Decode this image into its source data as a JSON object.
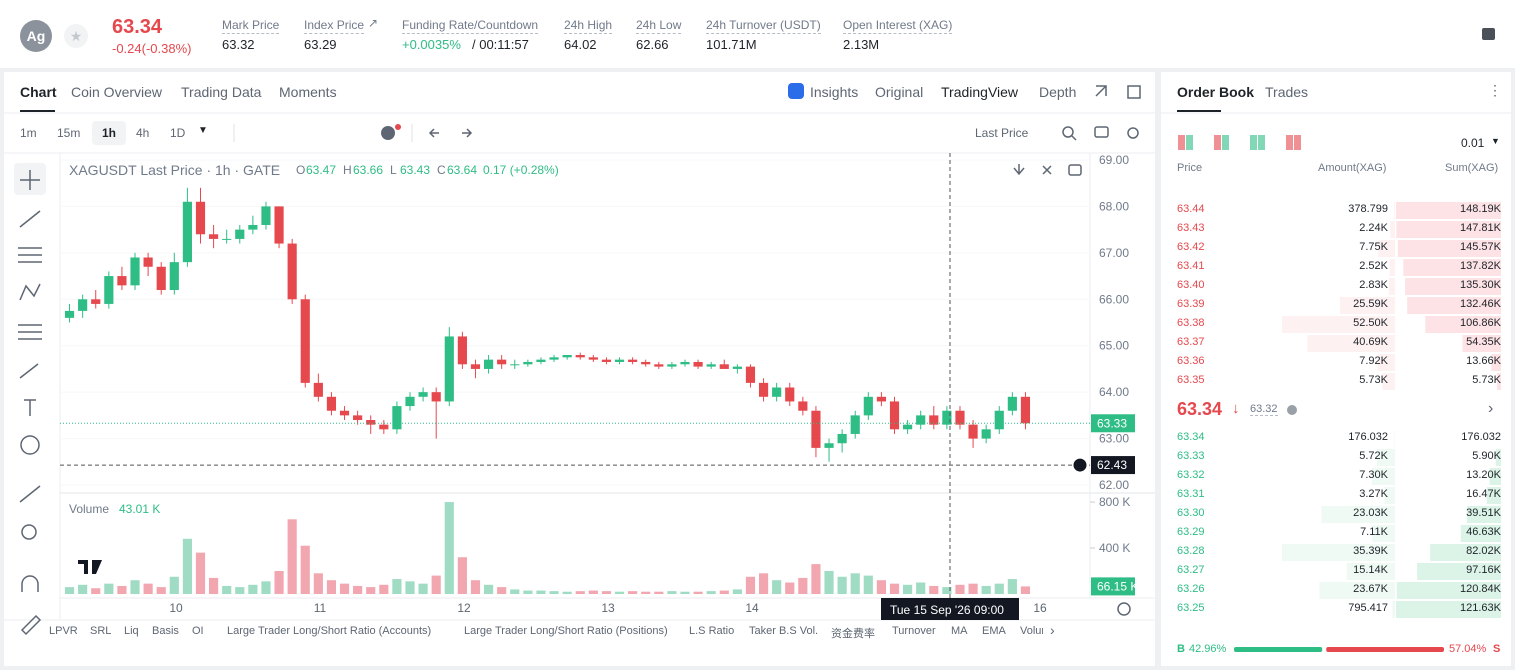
{
  "header": {
    "avatar": "Ag",
    "price": "63.34",
    "change": "-0.24(-0.38%)",
    "stats": [
      {
        "label": "Mark Price",
        "value": "63.32"
      },
      {
        "label": "Index Price",
        "value": "63.29"
      },
      {
        "label": "Funding Rate/Countdown",
        "value": "+0.0035%",
        "extra": "/ 00:11:57"
      },
      {
        "label": "24h High",
        "value": "64.02"
      },
      {
        "label": "24h Low",
        "value": "62.66"
      },
      {
        "label": "24h Turnover (USDT)",
        "value": "101.71M"
      },
      {
        "label": "Open Interest (XAG)",
        "value": "2.13M"
      }
    ]
  },
  "tabs": [
    "Chart",
    "Coin Overview",
    "Trading Data",
    "Moments"
  ],
  "view_tabs": [
    "Insights",
    "Original",
    "TradingView",
    "Depth"
  ],
  "intervals": [
    "1m",
    "15m",
    "1h",
    "4h",
    "1D"
  ],
  "price_type": "Last Price",
  "chart_data": {
    "type": "candlestick",
    "symbol": "XAGUSDT Last Price · 1h · GATE",
    "ohlc": [
      {
        "key": "O",
        "value": "63.47"
      },
      {
        "key": "H",
        "value": "63.66"
      },
      {
        "key": "L",
        "value": "63.43"
      },
      {
        "key": "C",
        "value": "63.64"
      }
    ],
    "change": "0.17 (+0.28%)",
    "ylim": [
      61.85,
      69.15
    ],
    "yticks": [
      {
        "value": 62,
        "label": "62.00"
      },
      {
        "value": 63,
        "label": "63.00"
      },
      {
        "value": 64,
        "label": "64.00"
      },
      {
        "value": 65,
        "label": "65.00"
      },
      {
        "value": 66,
        "label": "66.00"
      },
      {
        "value": 67,
        "label": "67.00"
      },
      {
        "value": 68,
        "label": "68.00"
      },
      {
        "value": 69,
        "label": "69.00"
      }
    ],
    "candles": [
      [
        65.6,
        65.9,
        65.5,
        65.75
      ],
      [
        65.75,
        66.1,
        65.6,
        66.0
      ],
      [
        66.0,
        66.2,
        65.8,
        65.9
      ],
      [
        65.9,
        66.6,
        65.8,
        66.5
      ],
      [
        66.5,
        66.7,
        66.2,
        66.3
      ],
      [
        66.3,
        67.0,
        66.2,
        66.9
      ],
      [
        66.9,
        67.0,
        66.5,
        66.7
      ],
      [
        66.7,
        66.8,
        66.1,
        66.2
      ],
      [
        66.2,
        67.0,
        66.1,
        66.8
      ],
      [
        66.8,
        68.4,
        66.7,
        68.1
      ],
      [
        68.1,
        68.4,
        67.2,
        67.4
      ],
      [
        67.4,
        67.6,
        67.1,
        67.3
      ],
      [
        67.3,
        67.5,
        67.2,
        67.3
      ],
      [
        67.3,
        67.6,
        67.2,
        67.5
      ],
      [
        67.5,
        67.8,
        67.4,
        67.6
      ],
      [
        67.6,
        68.1,
        67.5,
        68.0
      ],
      [
        68.0,
        68.0,
        67.1,
        67.2
      ],
      [
        67.2,
        67.3,
        65.9,
        66.0
      ],
      [
        66.0,
        66.1,
        64.1,
        64.2
      ],
      [
        64.2,
        64.4,
        63.8,
        63.9
      ],
      [
        63.9,
        64.0,
        63.5,
        63.6
      ],
      [
        63.6,
        63.7,
        63.4,
        63.5
      ],
      [
        63.5,
        63.6,
        63.3,
        63.4
      ],
      [
        63.4,
        63.5,
        63.1,
        63.3
      ],
      [
        63.3,
        63.4,
        63.1,
        63.2
      ],
      [
        63.2,
        63.8,
        63.1,
        63.7
      ],
      [
        63.7,
        64.0,
        63.6,
        63.9
      ],
      [
        63.9,
        64.1,
        63.8,
        64.0
      ],
      [
        64.0,
        64.1,
        63.0,
        63.8
      ],
      [
        63.8,
        65.4,
        63.7,
        65.2
      ],
      [
        65.2,
        65.3,
        64.5,
        64.6
      ],
      [
        64.6,
        64.7,
        64.3,
        64.5
      ],
      [
        64.5,
        64.8,
        64.4,
        64.7
      ],
      [
        64.7,
        64.8,
        64.5,
        64.6
      ],
      [
        64.6,
        64.7,
        64.5,
        64.6
      ],
      [
        64.6,
        64.7,
        64.55,
        64.65
      ],
      [
        64.65,
        64.75,
        64.6,
        64.7
      ],
      [
        64.7,
        64.8,
        64.65,
        64.75
      ],
      [
        64.75,
        64.8,
        64.7,
        64.8
      ],
      [
        64.8,
        64.85,
        64.7,
        64.75
      ],
      [
        64.75,
        64.8,
        64.65,
        64.7
      ],
      [
        64.7,
        64.75,
        64.6,
        64.65
      ],
      [
        64.65,
        64.75,
        64.6,
        64.7
      ],
      [
        64.7,
        64.75,
        64.6,
        64.65
      ],
      [
        64.65,
        64.7,
        64.55,
        64.6
      ],
      [
        64.6,
        64.65,
        64.5,
        64.55
      ],
      [
        64.55,
        64.65,
        64.5,
        64.6
      ],
      [
        64.6,
        64.7,
        64.55,
        64.65
      ],
      [
        64.65,
        64.7,
        64.5,
        64.55
      ],
      [
        64.55,
        64.65,
        64.5,
        64.6
      ],
      [
        64.6,
        64.7,
        64.5,
        64.5
      ],
      [
        64.5,
        64.6,
        64.4,
        64.55
      ],
      [
        64.55,
        64.6,
        64.1,
        64.2
      ],
      [
        64.2,
        64.3,
        63.8,
        63.9
      ],
      [
        63.9,
        64.2,
        63.8,
        64.1
      ],
      [
        64.1,
        64.2,
        63.7,
        63.8
      ],
      [
        63.8,
        63.9,
        63.5,
        63.6
      ],
      [
        63.6,
        63.7,
        62.6,
        62.8
      ],
      [
        62.8,
        63.0,
        62.5,
        62.9
      ],
      [
        62.9,
        63.2,
        62.7,
        63.1
      ],
      [
        63.1,
        63.6,
        63.0,
        63.5
      ],
      [
        63.5,
        64.0,
        63.4,
        63.9
      ],
      [
        63.9,
        64.0,
        63.7,
        63.8
      ],
      [
        63.8,
        63.9,
        63.1,
        63.2
      ],
      [
        63.2,
        63.4,
        63.1,
        63.3
      ],
      [
        63.3,
        63.6,
        63.2,
        63.5
      ],
      [
        63.5,
        63.7,
        63.2,
        63.3
      ],
      [
        63.3,
        63.7,
        63.2,
        63.6
      ],
      [
        63.6,
        63.7,
        63.2,
        63.3
      ],
      [
        63.3,
        63.4,
        62.8,
        63.0
      ],
      [
        63.0,
        63.3,
        62.9,
        63.2
      ],
      [
        63.2,
        63.7,
        63.1,
        63.6
      ],
      [
        63.6,
        64.0,
        63.5,
        63.9
      ],
      [
        63.9,
        64.0,
        63.2,
        63.33
      ]
    ],
    "last_price": 63.33,
    "crosshair_price": 62.43,
    "crosshair_date": "Tue 15 Sep '26   09:00",
    "xticks": [
      "10",
      "11",
      "12",
      "13",
      "14",
      "16"
    ],
    "volume_title": "Volume",
    "volume_value": "43.01 K",
    "vlim": [
      0,
      870000
    ],
    "vticks": [
      {
        "value": 400000,
        "label": "400 K"
      },
      {
        "value": 800000,
        "label": "800 K"
      }
    ],
    "volumes": [
      60000,
      80000,
      50000,
      90000,
      70000,
      120000,
      90000,
      60000,
      150000,
      480000,
      360000,
      140000,
      70000,
      60000,
      80000,
      110000,
      200000,
      650000,
      420000,
      180000,
      120000,
      90000,
      70000,
      60000,
      80000,
      130000,
      110000,
      90000,
      160000,
      800000,
      320000,
      120000,
      80000,
      60000,
      40000,
      30000,
      30000,
      25000,
      20000,
      25000,
      30000,
      25000,
      20000,
      25000,
      20000,
      20000,
      25000,
      20000,
      20000,
      25000,
      30000,
      40000,
      150000,
      180000,
      120000,
      100000,
      140000,
      260000,
      200000,
      150000,
      180000,
      160000,
      120000,
      90000,
      80000,
      100000,
      70000,
      60000,
      80000,
      90000,
      70000,
      90000,
      130000,
      66150
    ],
    "volume_last": {
      "value": 66150,
      "label": "66.15 K"
    },
    "indicators": [
      "LPVR",
      "SRL",
      "Liq",
      "Basis",
      "OI",
      "Large Trader Long/Short Ratio (Accounts)",
      "Large Trader Long/Short Ratio (Positions)",
      "L.S Ratio",
      "Taker B.S Vol.",
      "资金费率",
      "Turnover",
      "MA",
      "EMA",
      "Volume"
    ]
  },
  "order_book": {
    "tabs": [
      "Order Book",
      "Trades"
    ],
    "precision": "0.01",
    "headers": [
      "Price",
      "Amount(XAG)",
      "Sum(XAG)"
    ],
    "asks": [
      {
        "price": "63.44",
        "amount": 378.799,
        "sum": {
          "value": 148190,
          "label": "148.19K"
        }
      },
      {
        "price": "63.43",
        "amount": {
          "value": 2240,
          "label": "2.24K"
        },
        "sum": {
          "value": 147810,
          "label": "147.81K"
        }
      },
      {
        "price": "63.42",
        "amount": {
          "value": 7750,
          "label": "7.75K"
        },
        "sum": {
          "value": 145570,
          "label": "145.57K"
        }
      },
      {
        "price": "63.41",
        "amount": {
          "value": 2520,
          "label": "2.52K"
        },
        "sum": {
          "value": 137820,
          "label": "137.82K"
        }
      },
      {
        "price": "63.40",
        "amount": {
          "value": 2830,
          "label": "2.83K"
        },
        "sum": {
          "value": 135300,
          "label": "135.30K"
        }
      },
      {
        "price": "63.39",
        "amount": {
          "value": 25590,
          "label": "25.59K"
        },
        "sum": {
          "value": 132460,
          "label": "132.46K"
        }
      },
      {
        "price": "63.38",
        "amount": {
          "value": 52500,
          "label": "52.50K"
        },
        "sum": {
          "value": 106860,
          "label": "106.86K"
        }
      },
      {
        "price": "63.37",
        "amount": {
          "value": 40690,
          "label": "40.69K"
        },
        "sum": {
          "value": 54350,
          "label": "54.35K"
        }
      },
      {
        "price": "63.36",
        "amount": {
          "value": 7920,
          "label": "7.92K"
        },
        "sum": {
          "value": 13660,
          "label": "13.66K"
        }
      },
      {
        "price": "63.35",
        "amount": {
          "value": 5730,
          "label": "5.73K"
        },
        "sum": {
          "value": 5730,
          "label": "5.73K"
        }
      }
    ],
    "last": "63.34",
    "mark": "63.32",
    "bids": [
      {
        "price": "63.34",
        "amount": 176.032,
        "sum": 176.032
      },
      {
        "price": "63.33",
        "amount": {
          "value": 5720,
          "label": "5.72K"
        },
        "sum": {
          "value": 5900,
          "label": "5.90K"
        }
      },
      {
        "price": "63.32",
        "amount": {
          "value": 7300,
          "label": "7.30K"
        },
        "sum": {
          "value": 13200,
          "label": "13.20K"
        }
      },
      {
        "price": "63.31",
        "amount": {
          "value": 3270,
          "label": "3.27K"
        },
        "sum": {
          "value": 16470,
          "label": "16.47K"
        }
      },
      {
        "price": "63.30",
        "amount": {
          "value": 23030,
          "label": "23.03K"
        },
        "sum": {
          "value": 39510,
          "label": "39.51K"
        }
      },
      {
        "price": "63.29",
        "amount": {
          "value": 7110,
          "label": "7.11K"
        },
        "sum": {
          "value": 46630,
          "label": "46.63K"
        }
      },
      {
        "price": "63.28",
        "amount": {
          "value": 35390,
          "label": "35.39K"
        },
        "sum": {
          "value": 82020,
          "label": "82.02K"
        }
      },
      {
        "price": "63.27",
        "amount": {
          "value": 15140,
          "label": "15.14K"
        },
        "sum": {
          "value": 97160,
          "label": "97.16K"
        }
      },
      {
        "price": "63.26",
        "amount": {
          "value": 23670,
          "label": "23.67K"
        },
        "sum": {
          "value": 120840,
          "label": "120.84K"
        }
      },
      {
        "price": "63.25",
        "amount": 795.417,
        "sum": {
          "value": 121630,
          "label": "121.63K"
        }
      }
    ],
    "buy_key": "B",
    "buy": {
      "value": 42.96,
      "label": "42.96%"
    },
    "sell": {
      "value": 57.04,
      "label": "57.04%"
    },
    "sell_key": "S"
  }
}
